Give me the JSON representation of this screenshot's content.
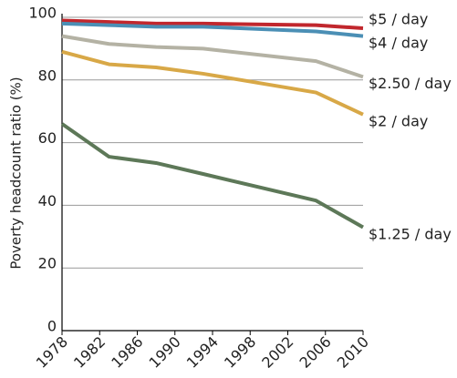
{
  "chart_data": {
    "type": "line",
    "y_label": "Poverty headcount ratio (%)",
    "x": [
      1978,
      1983,
      1988,
      1993,
      2005,
      2010
    ],
    "series": [
      {
        "name": "$5 / day",
        "color": "#c1272d",
        "values": [
          99,
          98.5,
          98,
          98,
          97.5,
          96.5
        ]
      },
      {
        "name": "$4 / day",
        "color": "#4b8fb5",
        "values": [
          98,
          97.5,
          97,
          97,
          95.5,
          94
        ]
      },
      {
        "name": "$2.50 / day",
        "color": "#b4b2a4",
        "values": [
          94,
          91.5,
          90.5,
          90,
          86,
          81
        ]
      },
      {
        "name": "$2 / day",
        "color": "#d8a847",
        "values": [
          89,
          85,
          84,
          82,
          76,
          69
        ]
      },
      {
        "name": "$1.25 / day",
        "color": "#5d7858",
        "values": [
          66,
          55.5,
          53.5,
          50,
          41.5,
          33
        ]
      }
    ],
    "xlim": [
      1978,
      2010
    ],
    "xticks": [
      1978,
      1982,
      1986,
      1990,
      1994,
      1998,
      2002,
      2006,
      2010
    ],
    "ylim": [
      0,
      100
    ],
    "yticks": [
      0,
      20,
      40,
      60,
      80,
      100
    ],
    "grid": true
  }
}
